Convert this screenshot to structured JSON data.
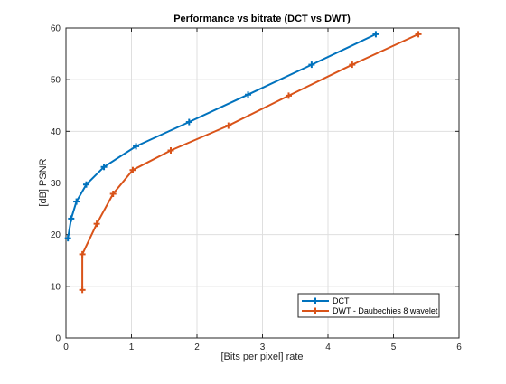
{
  "chart_data": {
    "type": "line",
    "title": "Performance vs bitrate (DCT vs DWT)",
    "xlabel": "[Bits per pixel] rate",
    "ylabel": "[dB] PSNR",
    "xlim": [
      0,
      6
    ],
    "ylim": [
      0,
      60
    ],
    "xticks": [
      0,
      1,
      2,
      3,
      4,
      5,
      6
    ],
    "yticks": [
      0,
      10,
      20,
      30,
      40,
      50,
      60
    ],
    "grid": true,
    "legend_position": "bottom-right",
    "series": [
      {
        "name": "DCT",
        "color": "#0072BD",
        "marker": "plus",
        "x": [
          0.03,
          0.08,
          0.16,
          0.31,
          0.58,
          1.07,
          1.88,
          2.78,
          3.75,
          4.73
        ],
        "y": [
          19.3,
          23.1,
          26.4,
          29.7,
          33.1,
          37.1,
          41.8,
          47.1,
          52.9,
          58.8
        ]
      },
      {
        "name": "DWT - Daubechies 8 wavelet",
        "color": "#D95319",
        "marker": "plus",
        "x": [
          0.25,
          0.25,
          0.47,
          0.72,
          1.02,
          1.6,
          2.48,
          3.4,
          4.37,
          5.38
        ],
        "y": [
          9.3,
          16.2,
          22.1,
          27.9,
          32.5,
          36.3,
          41.1,
          46.9,
          52.9,
          58.8
        ]
      }
    ]
  }
}
